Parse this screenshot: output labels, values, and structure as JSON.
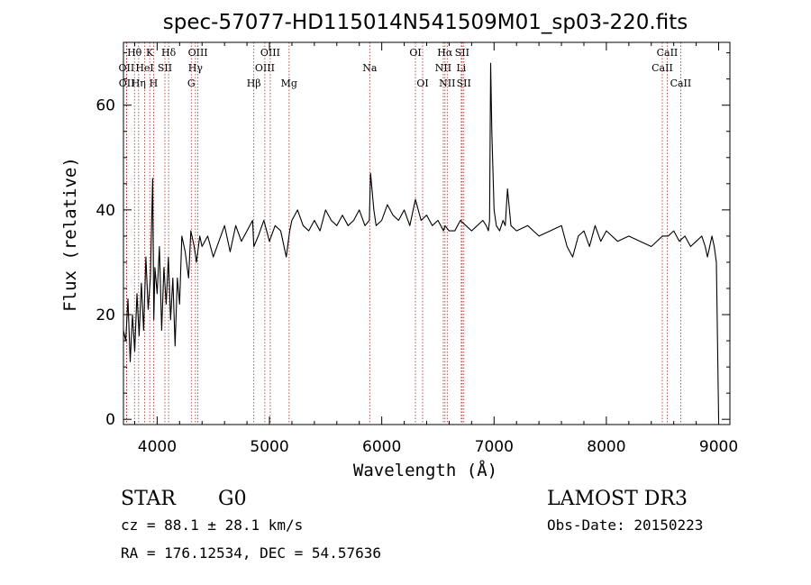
{
  "chart_data": {
    "type": "line",
    "title": "spec-57077-HD115014N541509M01_sp03-220.fits",
    "xlabel": "Wavelength (Å)",
    "ylabel": "Flux (relative)",
    "xlim": [
      3700,
      9100
    ],
    "ylim": [
      -1,
      72
    ],
    "xticks": [
      4000,
      5000,
      6000,
      7000,
      8000,
      9000
    ],
    "yticks": [
      0,
      20,
      40,
      60
    ],
    "series": [
      {
        "name": "flux",
        "color": "#000000",
        "x": [
          3700,
          3720,
          3740,
          3760,
          3780,
          3800,
          3820,
          3840,
          3860,
          3880,
          3900,
          3920,
          3940,
          3960,
          3970,
          3980,
          4000,
          4020,
          4040,
          4060,
          4080,
          4100,
          4120,
          4140,
          4160,
          4180,
          4200,
          4220,
          4250,
          4280,
          4300,
          4330,
          4350,
          4380,
          4400,
          4450,
          4500,
          4550,
          4600,
          4650,
          4700,
          4750,
          4800,
          4850,
          4861,
          4900,
          4950,
          5000,
          5050,
          5100,
          5150,
          5180,
          5200,
          5250,
          5300,
          5350,
          5400,
          5450,
          5500,
          5550,
          5600,
          5650,
          5700,
          5750,
          5800,
          5850,
          5890,
          5900,
          5930,
          5950,
          6000,
          6050,
          6100,
          6150,
          6200,
          6250,
          6300,
          6350,
          6400,
          6450,
          6500,
          6550,
          6563,
          6600,
          6650,
          6700,
          6750,
          6800,
          6850,
          6900,
          6930,
          6950,
          6960,
          6970,
          6980,
          7000,
          7020,
          7050,
          7080,
          7100,
          7120,
          7150,
          7200,
          7300,
          7400,
          7500,
          7600,
          7650,
          7700,
          7750,
          7800,
          7850,
          7900,
          7950,
          8000,
          8100,
          8200,
          8300,
          8400,
          8500,
          8550,
          8600,
          8650,
          8700,
          8750,
          8800,
          8850,
          8880,
          8900,
          8920,
          8940,
          8960,
          8980,
          9000
        ],
        "y": [
          17,
          15,
          23,
          11,
          20,
          13,
          24,
          16,
          26,
          17,
          31,
          21,
          27,
          46,
          19,
          29,
          24,
          33,
          17,
          29,
          22,
          31,
          19,
          27,
          14,
          27,
          22,
          35,
          32,
          27,
          36,
          33,
          30,
          35,
          33,
          35,
          31,
          34,
          37,
          32,
          37,
          34,
          36,
          38,
          33,
          35,
          38,
          34,
          37,
          36,
          31,
          36,
          38,
          40,
          37,
          36,
          38,
          36,
          40,
          38,
          37,
          39,
          37,
          38,
          40,
          37,
          38,
          47,
          40,
          37,
          38,
          41,
          39,
          38,
          40,
          37,
          42,
          38,
          39,
          37,
          38,
          36,
          37,
          36,
          36,
          38,
          37,
          36,
          37,
          38,
          37,
          36,
          38,
          68,
          55,
          40,
          37,
          36,
          38,
          37,
          44,
          37,
          36,
          37,
          35,
          36,
          37,
          33,
          31,
          35,
          36,
          33,
          37,
          34,
          36,
          34,
          35,
          34,
          33,
          35,
          35,
          36,
          34,
          35,
          33,
          34,
          35,
          33,
          31,
          33,
          35,
          33,
          30,
          0
        ]
      }
    ],
    "line_markers": [
      {
        "label": "OII",
        "wavelength": 3727,
        "row": 2
      },
      {
        "label": "OII",
        "wavelength": 3729,
        "row": 3
      },
      {
        "label": "Hθ",
        "wavelength": 3798,
        "row": 1
      },
      {
        "label": "Hη",
        "wavelength": 3835,
        "row": 3
      },
      {
        "label": "HeI",
        "wavelength": 3889,
        "row": 2
      },
      {
        "label": "K",
        "wavelength": 3934,
        "row": 1
      },
      {
        "label": "H",
        "wavelength": 3968,
        "row": 3
      },
      {
        "label": "SII",
        "wavelength": 4069,
        "row": 2
      },
      {
        "label": "Hδ",
        "wavelength": 4102,
        "row": 1
      },
      {
        "label": "G",
        "wavelength": 4304,
        "row": 3
      },
      {
        "label": "Hγ",
        "wavelength": 4341,
        "row": 2
      },
      {
        "label": "OIII",
        "wavelength": 4363,
        "row": 1
      },
      {
        "label": "Hβ",
        "wavelength": 4861,
        "row": 3
      },
      {
        "label": "OIII",
        "wavelength": 4959,
        "row": 2
      },
      {
        "label": "OIII",
        "wavelength": 5007,
        "row": 1
      },
      {
        "label": "Mg",
        "wavelength": 5175,
        "row": 3
      },
      {
        "label": "Na",
        "wavelength": 5893,
        "row": 2
      },
      {
        "label": "OI",
        "wavelength": 6300,
        "row": 1
      },
      {
        "label": "OI",
        "wavelength": 6364,
        "row": 3
      },
      {
        "label": "NII",
        "wavelength": 6548,
        "row": 2
      },
      {
        "label": "Hα",
        "wavelength": 6563,
        "row": 1
      },
      {
        "label": "NII",
        "wavelength": 6583,
        "row": 3
      },
      {
        "label": "Li",
        "wavelength": 6708,
        "row": 2
      },
      {
        "label": "SII",
        "wavelength": 6716,
        "row": 1
      },
      {
        "label": "SII",
        "wavelength": 6731,
        "row": 3
      },
      {
        "label": "CaII",
        "wavelength": 8498,
        "row": 2
      },
      {
        "label": "CaII",
        "wavelength": 8542,
        "row": 1
      },
      {
        "label": "CaII",
        "wavelength": 8662,
        "row": 3
      }
    ],
    "marker_color": "#b22222"
  },
  "info": {
    "object_class": "STAR",
    "subclass": "G0",
    "survey": "LAMOST DR3",
    "cz": "cz = 88.1 ± 28.1 km/s",
    "obs_date": "Obs-Date: 20150223",
    "coords": "RA = 176.12534, DEC =  54.57636"
  }
}
